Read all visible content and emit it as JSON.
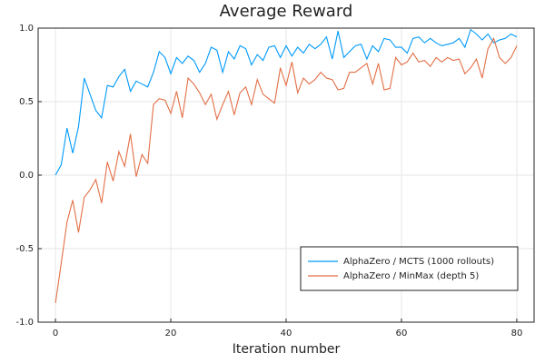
{
  "chart_data": {
    "type": "line",
    "title": "Average Reward",
    "x_label": "Iteration number",
    "x": [
      0,
      1,
      2,
      3,
      4,
      5,
      6,
      7,
      8,
      9,
      10,
      11,
      12,
      13,
      14,
      15,
      16,
      17,
      18,
      19,
      20,
      21,
      22,
      23,
      24,
      25,
      26,
      27,
      28,
      29,
      30,
      31,
      32,
      33,
      34,
      35,
      36,
      37,
      38,
      39,
      40,
      41,
      42,
      43,
      44,
      45,
      46,
      47,
      48,
      49,
      50,
      51,
      52,
      53,
      54,
      55,
      56,
      57,
      58,
      59,
      60,
      61,
      62,
      63,
      64,
      65,
      66,
      67,
      68,
      69,
      70,
      71,
      72,
      73,
      74,
      75,
      76,
      77,
      78,
      79,
      80
    ],
    "series": [
      {
        "name": "AlphaZero / MCTS (1000 rollouts)",
        "color": "#009AFA",
        "values": [
          0.0,
          0.07,
          0.32,
          0.15,
          0.33,
          0.66,
          0.55,
          0.44,
          0.39,
          0.61,
          0.6,
          0.67,
          0.72,
          0.57,
          0.64,
          0.62,
          0.6,
          0.7,
          0.84,
          0.8,
          0.69,
          0.8,
          0.76,
          0.81,
          0.78,
          0.7,
          0.76,
          0.87,
          0.85,
          0.7,
          0.84,
          0.79,
          0.88,
          0.86,
          0.75,
          0.82,
          0.78,
          0.87,
          0.88,
          0.8,
          0.88,
          0.81,
          0.87,
          0.83,
          0.89,
          0.86,
          0.89,
          0.94,
          0.79,
          0.98,
          0.8,
          0.84,
          0.88,
          0.89,
          0.79,
          0.88,
          0.84,
          0.93,
          0.92,
          0.87,
          0.87,
          0.83,
          0.93,
          0.94,
          0.9,
          0.93,
          0.9,
          0.88,
          0.89,
          0.9,
          0.93,
          0.87,
          0.99,
          0.96,
          0.92,
          0.96,
          0.9,
          0.92,
          0.93,
          0.96,
          0.94
        ]
      },
      {
        "name": "AlphaZero / MinMax (depth 5)",
        "color": "#E26F46",
        "values": [
          -0.87,
          -0.6,
          -0.32,
          -0.17,
          -0.39,
          -0.15,
          -0.1,
          -0.03,
          -0.19,
          0.09,
          -0.04,
          0.16,
          0.06,
          0.28,
          -0.01,
          0.14,
          0.08,
          0.48,
          0.52,
          0.51,
          0.42,
          0.57,
          0.39,
          0.66,
          0.62,
          0.56,
          0.48,
          0.55,
          0.38,
          0.48,
          0.57,
          0.41,
          0.56,
          0.6,
          0.48,
          0.65,
          0.55,
          0.52,
          0.49,
          0.73,
          0.61,
          0.77,
          0.56,
          0.66,
          0.62,
          0.65,
          0.7,
          0.66,
          0.65,
          0.58,
          0.59,
          0.7,
          0.7,
          0.73,
          0.76,
          0.62,
          0.76,
          0.58,
          0.59,
          0.8,
          0.75,
          0.77,
          0.83,
          0.77,
          0.78,
          0.74,
          0.8,
          0.77,
          0.8,
          0.78,
          0.79,
          0.69,
          0.73,
          0.79,
          0.66,
          0.86,
          0.93,
          0.8,
          0.76,
          0.8,
          0.88
        ]
      }
    ],
    "xlim": [
      -3,
      83
    ],
    "ylim": [
      -1,
      1
    ],
    "xticks": [
      0,
      20,
      40,
      60,
      80
    ],
    "yticks": [
      {
        "value": -1,
        "label": "-1.0"
      },
      {
        "value": -0.5,
        "label": "-0.5"
      },
      {
        "value": 0,
        "label": "0.0"
      },
      {
        "value": 0.5,
        "label": "0.5"
      },
      {
        "value": 1,
        "label": "1.0"
      }
    ],
    "grid": true,
    "legend": "lower right"
  }
}
